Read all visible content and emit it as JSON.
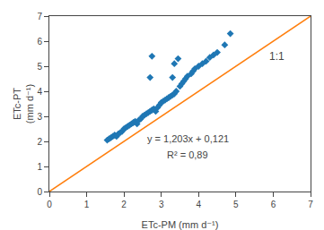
{
  "chart_data": {
    "type": "scatter",
    "xlabel": "ETc-PM (mm d⁻¹)",
    "ylabel": "ETc-PT\n(mm d⁻¹)",
    "xlim": [
      0,
      7
    ],
    "ylim": [
      0,
      7
    ],
    "xticks": [
      0,
      1,
      2,
      3,
      4,
      5,
      6,
      7
    ],
    "yticks": [
      0,
      1,
      2,
      3,
      4,
      5,
      6,
      7
    ],
    "grid": false,
    "series": [
      {
        "type": "scatter",
        "marker": "diamond",
        "x": [
          1.55,
          1.6,
          1.65,
          1.7,
          1.75,
          1.8,
          1.85,
          1.9,
          1.95,
          2.0,
          2.05,
          2.1,
          2.15,
          2.2,
          2.25,
          2.3,
          2.35,
          2.4,
          2.45,
          2.5,
          2.55,
          2.6,
          2.65,
          2.7,
          2.75,
          2.8,
          2.85,
          2.9,
          2.95,
          3.0,
          3.05,
          3.1,
          3.15,
          3.2,
          3.25,
          3.3,
          3.35,
          3.4,
          3.5,
          3.55,
          3.6,
          3.65,
          3.7,
          3.8,
          3.85,
          3.9,
          4.0,
          4.1,
          4.2,
          4.3,
          4.4,
          4.5,
          4.7,
          4.85,
          3.3,
          3.35,
          3.45,
          2.7,
          2.75
        ],
        "values": [
          2.05,
          2.1,
          2.15,
          2.2,
          2.25,
          2.2,
          2.3,
          2.35,
          2.4,
          2.5,
          2.55,
          2.6,
          2.65,
          2.7,
          2.75,
          2.8,
          2.7,
          2.85,
          2.9,
          3.0,
          3.05,
          3.1,
          3.15,
          3.2,
          3.25,
          3.3,
          3.2,
          3.35,
          3.45,
          3.55,
          3.6,
          3.65,
          3.7,
          3.75,
          3.8,
          3.85,
          3.9,
          4.0,
          4.2,
          4.3,
          4.4,
          4.5,
          4.6,
          4.7,
          4.8,
          4.9,
          5.0,
          5.1,
          5.2,
          5.35,
          5.45,
          5.55,
          5.85,
          6.3,
          4.55,
          5.1,
          5.3,
          4.55,
          5.4
        ]
      },
      {
        "type": "line",
        "line_style": "solid",
        "x": [
          0,
          7
        ],
        "values": [
          0,
          7
        ]
      }
    ],
    "annotations": [
      "y = 1,203x + 0,121",
      "R² = 0,89",
      "1:1"
    ]
  }
}
